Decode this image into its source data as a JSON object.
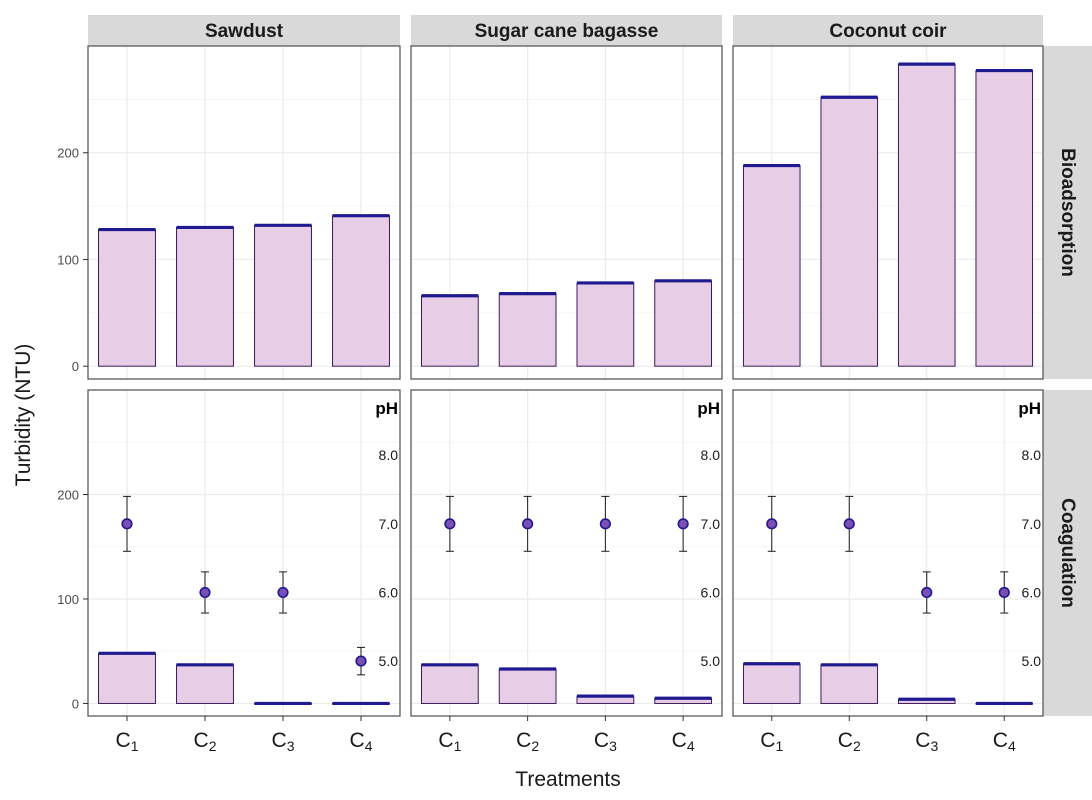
{
  "chart_data": {
    "type": "bar",
    "xlabel": "Treatments",
    "ylabel": "Turbidity (NTU)",
    "categories": [
      {
        "base": "C",
        "sub": "1"
      },
      {
        "base": "C",
        "sub": "2"
      },
      {
        "base": "C",
        "sub": "3"
      },
      {
        "base": "C",
        "sub": "4"
      }
    ],
    "columns": [
      "Sawdust",
      "Sugar cane bagasse",
      "Coconut coir"
    ],
    "rows": [
      "Bioadsorption",
      "Coagulation"
    ],
    "ylim": [
      -12,
      300
    ],
    "yticks": [
      0,
      100,
      200
    ],
    "grid": true,
    "secondary_label": "pH",
    "ph_ticks": [
      "8.0",
      "7.0",
      "6.0",
      "5.0"
    ],
    "ph_tick_values": [
      8.0,
      7.0,
      6.0,
      5.0
    ],
    "colors": {
      "bar_fill": "#e7cde6",
      "bar_outline": "#3d1a5b",
      "mean_line": "#1f1a8f",
      "point_fill": "#7b4fb3",
      "point_outline": "#1f1a8f",
      "strip_bg": "#d9d9d9",
      "grid": "#ebebeb"
    },
    "panels": [
      {
        "row": "Bioadsorption",
        "column": "Sawdust",
        "values": [
          128,
          130,
          132,
          141
        ]
      },
      {
        "row": "Bioadsorption",
        "column": "Sugar cane bagasse",
        "values": [
          66,
          68,
          78,
          80
        ]
      },
      {
        "row": "Bioadsorption",
        "column": "Coconut coir",
        "values": [
          188,
          252,
          283,
          277
        ]
      },
      {
        "row": "Coagulation",
        "column": "Sawdust",
        "values": [
          48,
          37,
          0,
          0
        ],
        "ph_points": [
          {
            "ph": 7.0,
            "err": 0.4
          },
          {
            "ph": 6.0,
            "err": 0.3
          },
          {
            "ph": 6.0,
            "err": 0.3
          },
          {
            "ph": 5.0,
            "err": 0.2
          }
        ]
      },
      {
        "row": "Coagulation",
        "column": "Sugar cane bagasse",
        "values": [
          37,
          33,
          7,
          5
        ],
        "ph_points": [
          {
            "ph": 7.0,
            "err": 0.4
          },
          {
            "ph": 7.0,
            "err": 0.4
          },
          {
            "ph": 7.0,
            "err": 0.4
          },
          {
            "ph": 7.0,
            "err": 0.4
          }
        ]
      },
      {
        "row": "Coagulation",
        "column": "Coconut coir",
        "values": [
          38,
          37,
          4,
          0
        ],
        "ph_points": [
          {
            "ph": 7.0,
            "err": 0.4
          },
          {
            "ph": 7.0,
            "err": 0.4
          },
          {
            "ph": 6.0,
            "err": 0.3
          },
          {
            "ph": 6.0,
            "err": 0.3
          }
        ]
      }
    ]
  }
}
